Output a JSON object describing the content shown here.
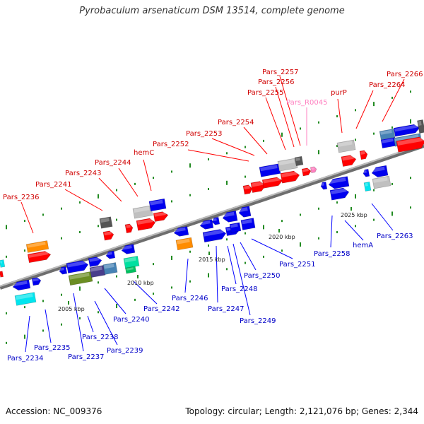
{
  "title": "Pyrobaculum arsenaticum DSM 13514, complete genome",
  "accession_label": "Accession: NC_009376",
  "summary_label": "Topology: circular; Length: 2,121,076 bp; Genes: 2,344",
  "colors": {
    "backbone": "#8c8c8c",
    "tick": "#228b22",
    "label_top": "#d00000",
    "label_bottom": "#0000c8",
    "label_rna": "#ff80c0",
    "leader_top": "#ff0000",
    "leader_bottom": "#0000ff",
    "leader_rna": "#ff80c0"
  },
  "kbp_markers": [
    "2005 kbp",
    "2010 kbp",
    "2015 kbp",
    "2020 kbp",
    "2025 kbp"
  ],
  "labels_top": [
    "Pars_2236",
    "Pars_2241",
    "Pars_2243",
    "Pars_2244",
    "hemC",
    "Pars_2252",
    "Pars_2253",
    "Pars_2254",
    "Pars_2255",
    "Pars_2256",
    "Pars_2257",
    "purP",
    "Pars_2264",
    "Pars_2266"
  ],
  "labels_rna": [
    "Pars_R0045"
  ],
  "labels_bottom": [
    "Pars_2234",
    "Pars_2235",
    "Pars_2237",
    "Pars_2238",
    "Pars_2239",
    "Pars_2240",
    "Pars_2242",
    "Pars_2246",
    "Pars_2247",
    "Pars_2248",
    "Pars_2249",
    "Pars_2250",
    "Pars_2251",
    "Pars_2258",
    "hemA",
    "Pars_2263"
  ]
}
